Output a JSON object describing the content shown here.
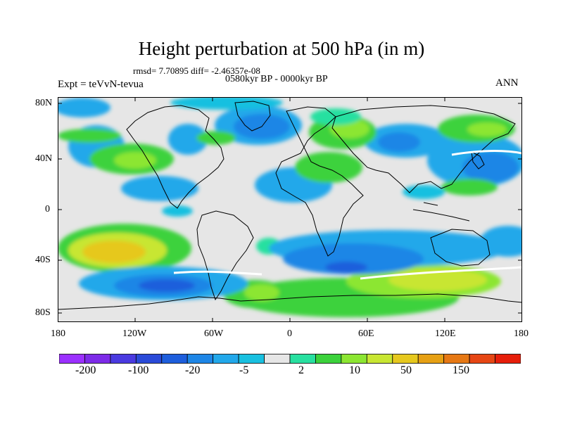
{
  "title": "Height perturbation at 500 hPa (in m)",
  "stats": "rmsd= 7.70895 diff= -2.46357e-08",
  "period": "0580kyr BP - 0000kyr BP",
  "experiment": "Expt = teVvN-tevua",
  "season": "ANN",
  "map": {
    "lat_ticks": [
      "80N",
      "40N",
      "0",
      "40S",
      "80S"
    ],
    "lon_ticks": [
      "180",
      "120W",
      "60W",
      "0",
      "60E",
      "120E",
      "180"
    ],
    "ocean_color": "#e6e6e6",
    "coastline_color": "#000000"
  },
  "colorbar": {
    "colors": [
      "#9b30ff",
      "#7d2be8",
      "#4a3ae0",
      "#2a4ad8",
      "#1e5edc",
      "#1e86e6",
      "#22a8ea",
      "#19c0e0",
      "#e6e6e6",
      "#28e0a0",
      "#3cd23c",
      "#8ce632",
      "#c8e632",
      "#e6c81e",
      "#e6a014",
      "#e67814",
      "#e64614",
      "#e61e0a"
    ],
    "labels": [
      "-200",
      "-100",
      "-20",
      "-5",
      "2",
      "10",
      "50",
      "150"
    ]
  }
}
